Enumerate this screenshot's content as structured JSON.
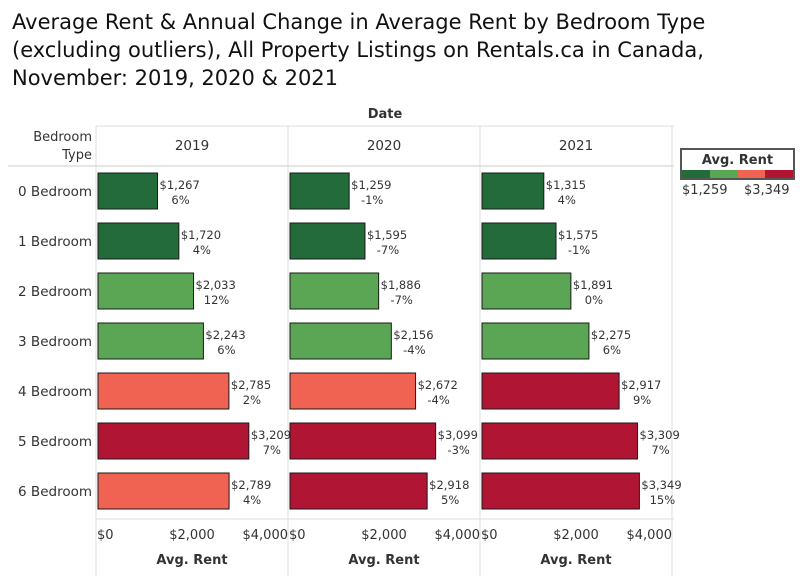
{
  "title": {
    "lines": [
      "Average Rent & Annual Change in Average Rent by Bedroom Type",
      "(excluding outliers), All Property Listings on Rentals.ca in Canada,",
      "November: 2019, 2020 & 2021"
    ]
  },
  "header": {
    "column_group_label": "Date",
    "row_header": [
      "Bedroom",
      "Type"
    ]
  },
  "legend": {
    "title": "Avg. Rent",
    "min_label": "$1,259",
    "max_label": "$3,349",
    "colors": [
      "#246b3b",
      "#5aa654",
      "#f06352",
      "#b11534"
    ]
  },
  "chart_data": {
    "type": "bar",
    "orientation": "horizontal",
    "categories": [
      "0 Bedroom",
      "1 Bedroom",
      "2 Bedroom",
      "3 Bedroom",
      "4 Bedroom",
      "5 Bedroom",
      "6 Bedroom"
    ],
    "panels": [
      {
        "name": "2019",
        "values": [
          1267,
          1720,
          2033,
          2243,
          2785,
          3209,
          2789
        ],
        "value_labels": [
          "$1,267",
          "$1,720",
          "$2,033",
          "$2,243",
          "$2,785",
          "$3,209",
          "$2,789"
        ],
        "change_labels": [
          "6%",
          "4%",
          "12%",
          "6%",
          "2%",
          "7%",
          "4%"
        ],
        "colors": [
          "#246b3b",
          "#246b3b",
          "#5aa654",
          "#5aa654",
          "#f06352",
          "#b11534",
          "#f06352"
        ]
      },
      {
        "name": "2020",
        "values": [
          1259,
          1595,
          1886,
          2156,
          2672,
          3099,
          2918
        ],
        "value_labels": [
          "$1,259",
          "$1,595",
          "$1,886",
          "$2,156",
          "$2,672",
          "$3,099",
          "$2,918"
        ],
        "change_labels": [
          "-1%",
          "-7%",
          "-7%",
          "-4%",
          "-4%",
          "-3%",
          "5%"
        ],
        "colors": [
          "#246b3b",
          "#246b3b",
          "#5aa654",
          "#5aa654",
          "#f06352",
          "#b11534",
          "#b11534"
        ]
      },
      {
        "name": "2021",
        "values": [
          1315,
          1575,
          1891,
          2275,
          2917,
          3309,
          3349
        ],
        "value_labels": [
          "$1,315",
          "$1,575",
          "$1,891",
          "$2,275",
          "$2,917",
          "$3,309",
          "$3,349"
        ],
        "change_labels": [
          "4%",
          "-1%",
          "0%",
          "6%",
          "9%",
          "7%",
          "15%"
        ],
        "colors": [
          "#246b3b",
          "#246b3b",
          "#5aa654",
          "#5aa654",
          "#b11534",
          "#b11534",
          "#b11534"
        ]
      }
    ],
    "xlim": [
      0,
      4000
    ],
    "x_ticks": [
      0,
      2000,
      4000
    ],
    "x_tick_labels": [
      "$0",
      "$2,000",
      "$4,000"
    ],
    "xlabel": "Avg. Rent"
  }
}
